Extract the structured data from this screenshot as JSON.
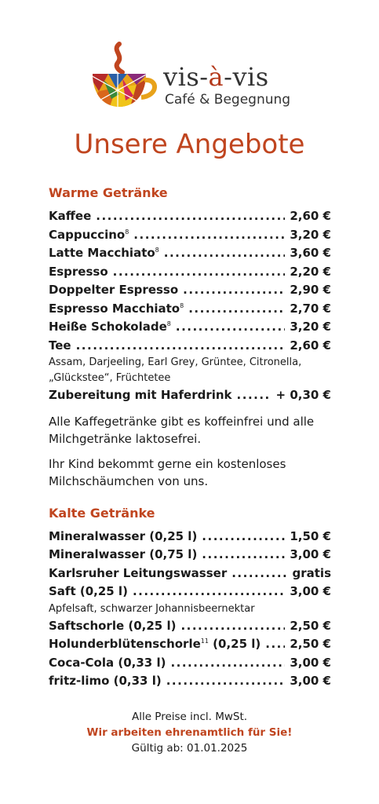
{
  "brand": {
    "name_part1": "vis-",
    "name_accent": "à",
    "name_part2": "-vis",
    "subtitle": "Café & Begegnung"
  },
  "title": "Unsere Angebote",
  "warm": {
    "heading": "Warme Getränke",
    "items": [
      {
        "name": "Kaffee",
        "sup": "",
        "price": "2,60 €"
      },
      {
        "name": "Cappuccino",
        "sup": "8",
        "price": "3,20 €"
      },
      {
        "name": "Latte Macchiato",
        "sup": "8",
        "price": "3,60 €"
      },
      {
        "name": "Espresso",
        "sup": "",
        "price": "2,20 €"
      },
      {
        "name": "Doppelter Espresso",
        "sup": "",
        "price": "2,90 €"
      },
      {
        "name": "Espresso Macchiato",
        "sup": "8",
        "price": "2,70 €"
      },
      {
        "name": "Heiße Schokolade",
        "sup": "8",
        "price": "3,20 €"
      },
      {
        "name": "Tee",
        "sup": "",
        "price": "2,60 €"
      }
    ],
    "tea_note": "Assam, Darjeeling, Earl Grey, Grüntee, Citronella, „Glückstee“, Früchtetee",
    "oat": {
      "name": "Zubereitung mit Haferdrink",
      "price": "+ 0,30 €"
    },
    "para1": "Alle Kaffegetränke gibt es koffeinfrei und alle Milchgetränke laktosefrei.",
    "para2": "Ihr Kind bekommt gerne ein kostenloses Milchschäumchen von uns."
  },
  "cold": {
    "heading": "Kalte Getränke",
    "items_a": [
      {
        "name": "Mineralwasser (0,25 l)",
        "sup": "",
        "price": "1,50 €"
      },
      {
        "name": "Mineralwasser (0,75 l)",
        "sup": "",
        "price": "3,00 €"
      },
      {
        "name": "Karlsruher Leitungswasser",
        "sup": "",
        "price": "gratis"
      },
      {
        "name": "Saft (0,25 l)",
        "sup": "",
        "price": "3,00 €"
      }
    ],
    "juice_note": "Apfelsaft, schwarzer Johannisbeernektar",
    "items_b": [
      {
        "name": "Saftschorle (0,25 l)",
        "sup": "",
        "price": "2,50 €"
      },
      {
        "name": "Holunderblütenschorle",
        "sup": "11",
        "suffix": " (0,25 l)",
        "price": "2,50 €"
      },
      {
        "name": "Coca-Cola (0,33 l)",
        "sup": "",
        "price": "3,00 €"
      },
      {
        "name": "fritz-limo (0,33 l)",
        "sup": "",
        "price": "3,00 €"
      }
    ]
  },
  "footer": {
    "line1": "Alle Preise incl. MwSt.",
    "line2": "Wir arbeiten ehrenamtlich für Sie!",
    "line3": "Gültig ab: 01.01.2025"
  },
  "colors": {
    "accent": "#c0451f",
    "text": "#1a1a1a"
  }
}
